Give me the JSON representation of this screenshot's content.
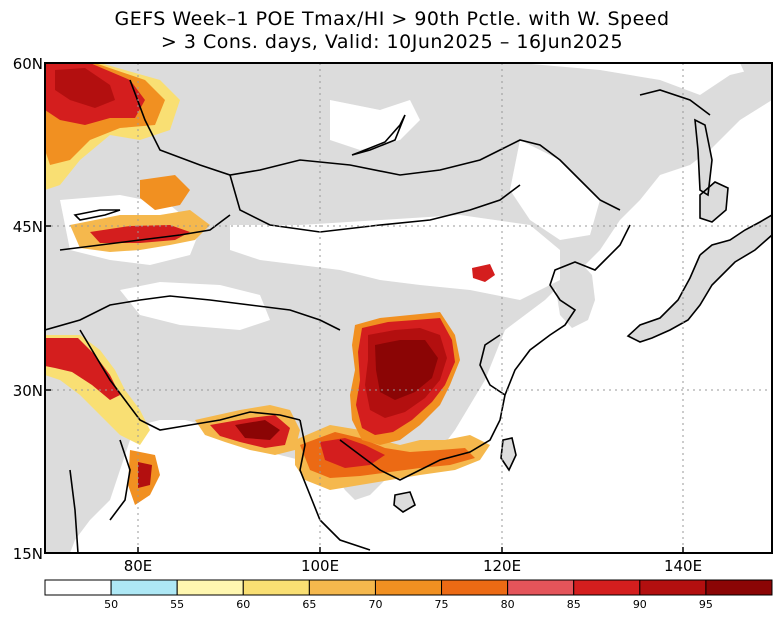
{
  "title": {
    "line1": "GEFS Week–1 POE Tmax/HI > 90th Pctle. with W. Speed",
    "line2": "> 3 Cons. days, Valid: 10Jun2025 – 16Jun2025"
  },
  "map": {
    "lat_labels": [
      "60N",
      "45N",
      "30N",
      "15N"
    ],
    "lon_labels": [
      "80E",
      "100E",
      "120E",
      "140E"
    ],
    "land_color": "#dcdcdc",
    "ocean_color": "#ffffff",
    "border_color": "#000000"
  },
  "legend": {
    "labels": [
      "50",
      "55",
      "60",
      "65",
      "70",
      "75",
      "80",
      "85",
      "90",
      "95"
    ],
    "colors": [
      "#ffffff",
      "#aee8f5",
      "#fff7b0",
      "#f9df73",
      "#f5b84d",
      "#f19021",
      "#ec6a14",
      "#e4545a",
      "#d41e1e",
      "#b30f0f",
      "#8b0505"
    ]
  }
}
